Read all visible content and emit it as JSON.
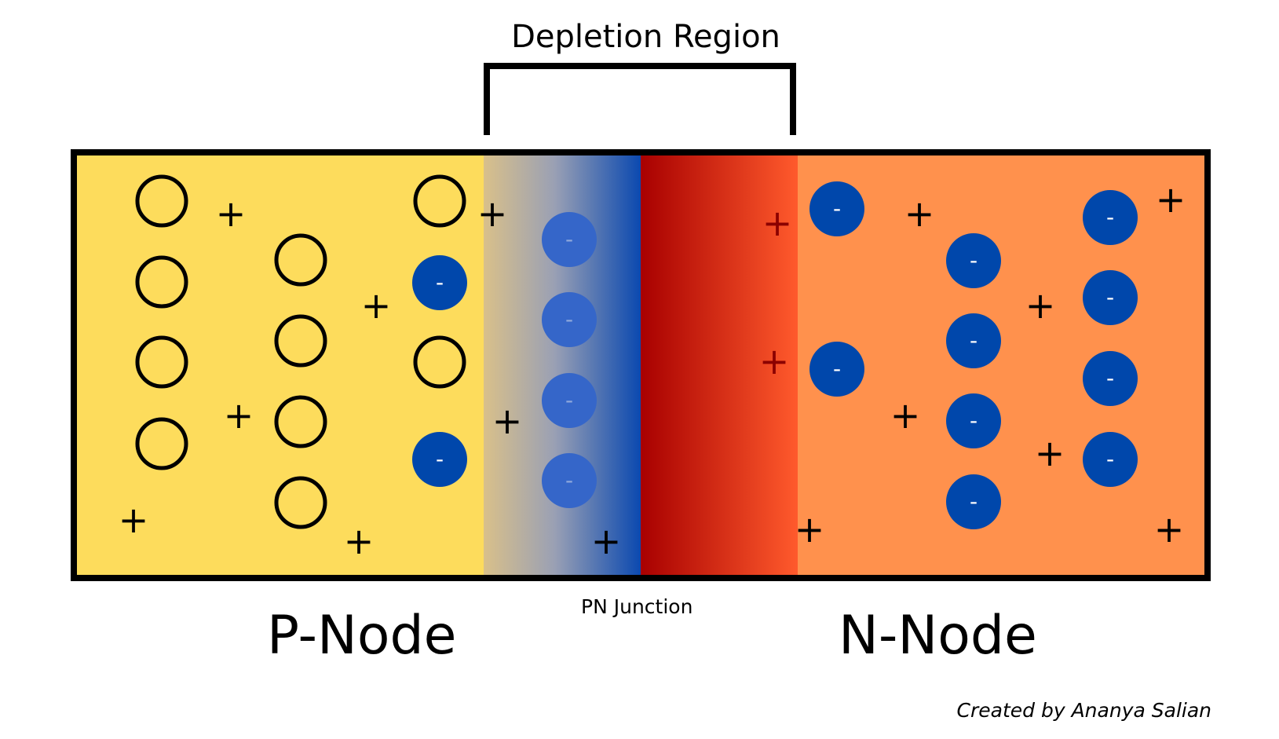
{
  "diagram": {
    "title": "Depletion Region",
    "junction_label": "PN Junction",
    "p_side_label": "P-Node",
    "n_side_label": "N-Node",
    "credit": "Created by Ananya Salian",
    "plus_symbol": "+",
    "minus_symbol": "-"
  },
  "colors": {
    "p_region": "#FDDC5C",
    "n_region": "#FF914D",
    "depletion_p_start": "#D9C08A",
    "depletion_p_end": "#0B49B0",
    "depletion_n_start": "#A80000",
    "depletion_n_end": "#FF5A2C",
    "electron": "#0047AB",
    "electron_faded": "#3566C9",
    "ion_red": "#8B0000",
    "outline": "#000000"
  }
}
